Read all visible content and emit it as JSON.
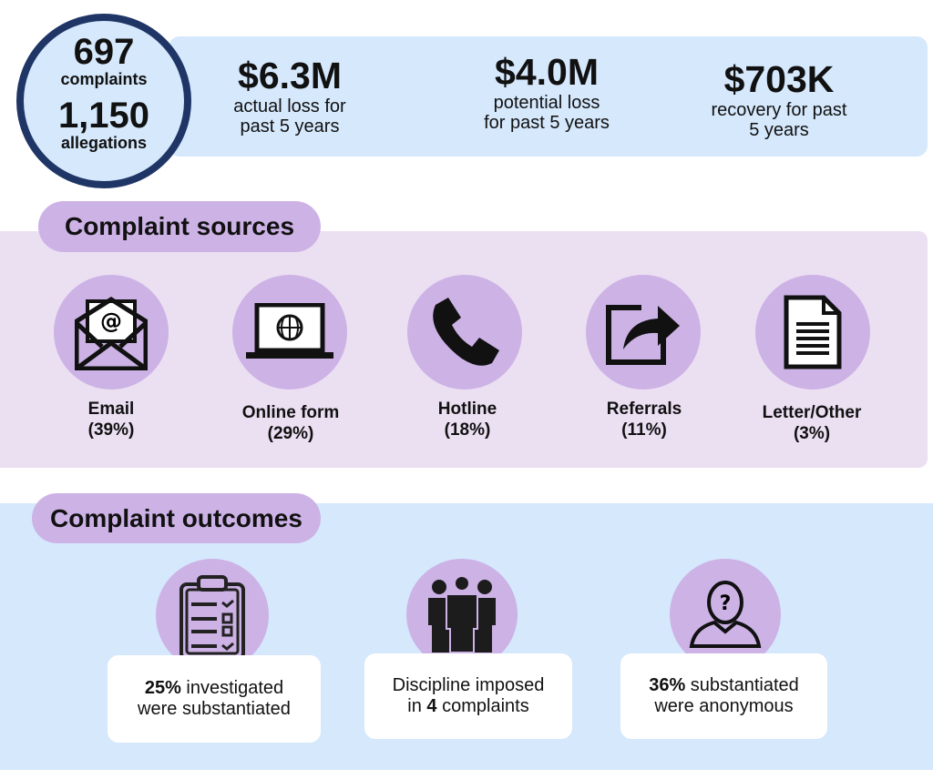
{
  "summary": {
    "complaints_count": "697",
    "complaints_label": "complaints",
    "allegations_count": "1,150",
    "allegations_label": "allegations",
    "stats": [
      {
        "value": "$6.3M",
        "line1": "actual loss for",
        "line2": "past 5 years"
      },
      {
        "value": "$4.0M",
        "line1": "potential loss",
        "line2": "for past 5 years"
      },
      {
        "value": "$703K",
        "line1": "recovery for past",
        "line2": "5 years"
      }
    ]
  },
  "sources": {
    "title": "Complaint sources",
    "items": [
      {
        "label": "Email",
        "percent": "(39%)",
        "icon": "email-icon"
      },
      {
        "label": "Online form",
        "percent": "(29%)",
        "icon": "laptop-icon"
      },
      {
        "label": "Hotline",
        "percent": "(18%)",
        "icon": "phone-icon"
      },
      {
        "label": "Referrals",
        "percent": "(11%)",
        "icon": "share-icon"
      },
      {
        "label": "Letter/Other",
        "percent": "(3%)",
        "icon": "document-icon"
      }
    ]
  },
  "outcomes": {
    "title": "Complaint outcomes",
    "items": [
      {
        "bold": "25%",
        "text1": " investigated",
        "text2": "were substantiated",
        "icon": "checklist-icon"
      },
      {
        "pre": "Discipline imposed",
        "pre2": "in ",
        "bold": "4",
        "text": " complaints",
        "icon": "group-icon"
      },
      {
        "bold": "36%",
        "text1": " substantiated",
        "text2": "were anonymous",
        "icon": "anonymous-person-icon"
      }
    ]
  },
  "colors": {
    "navy": "#1f3566",
    "light_blue": "#d5e8fc",
    "lavender": "#ebdff2",
    "purple": "#cdb2e6"
  }
}
